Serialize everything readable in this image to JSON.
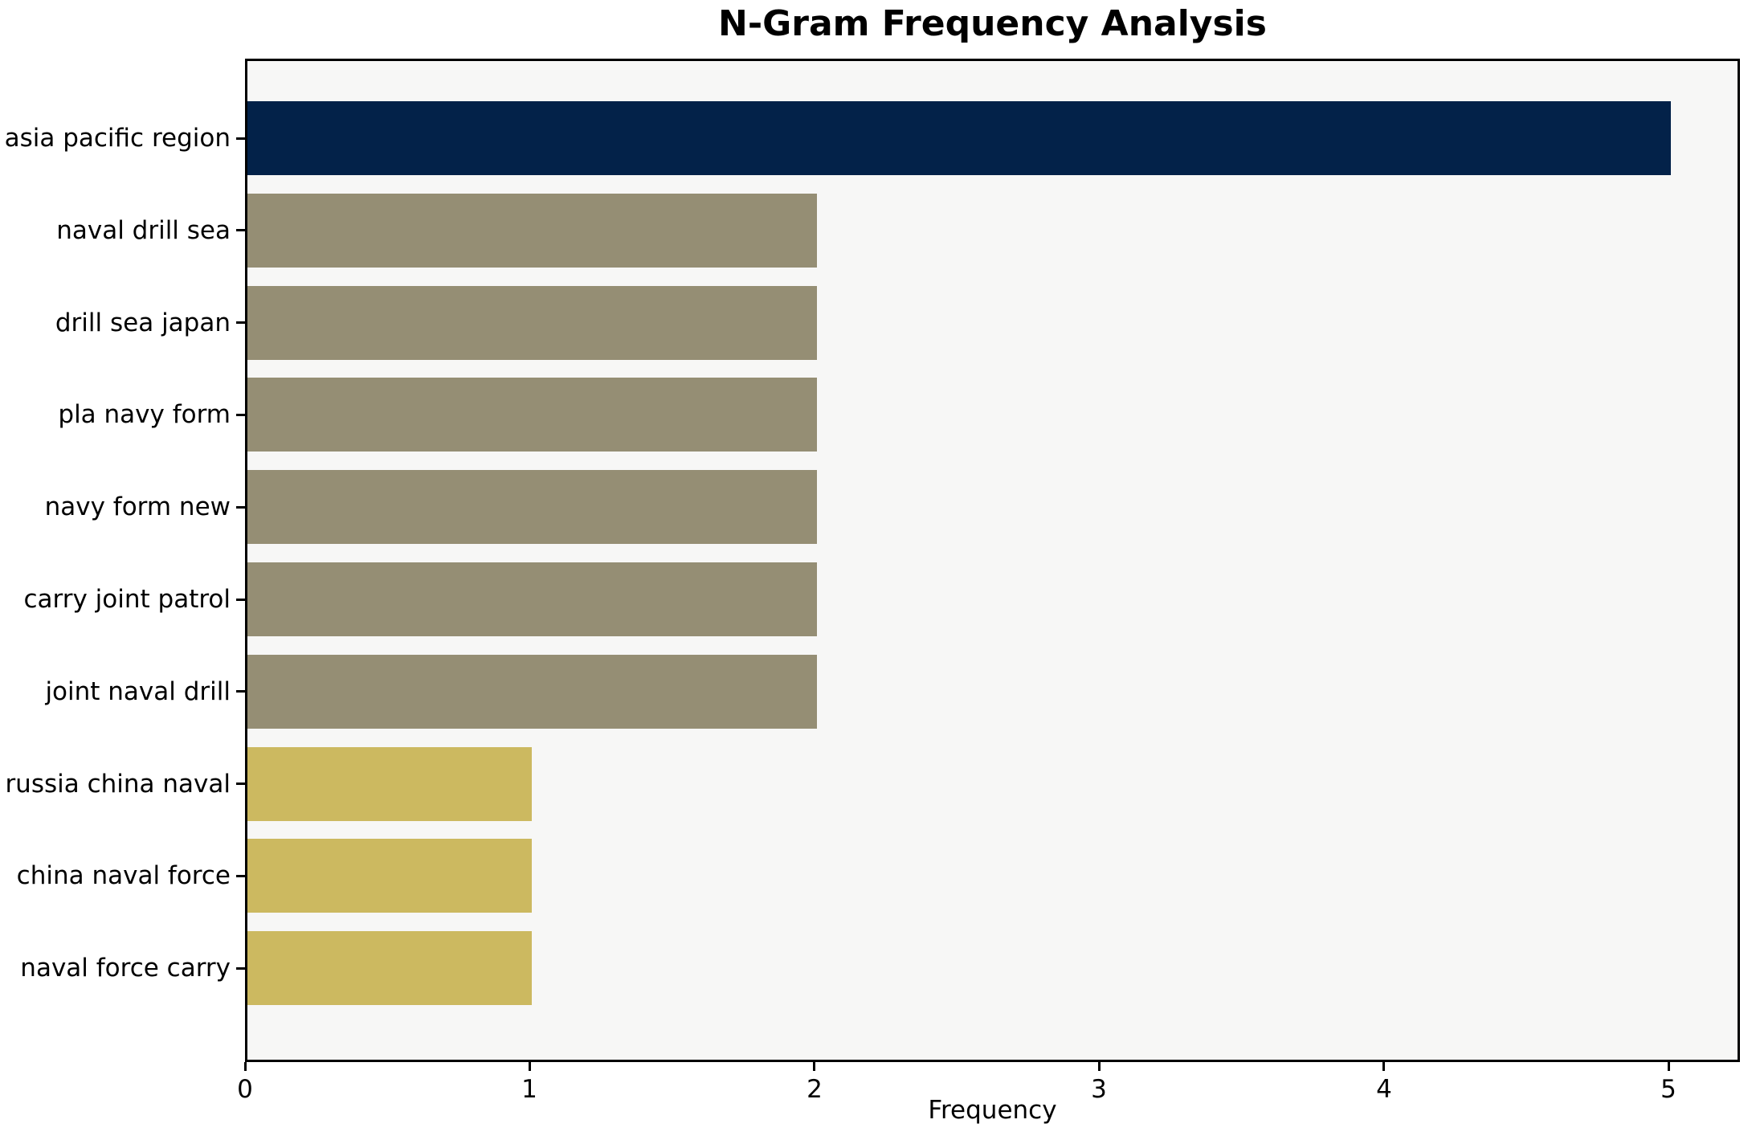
{
  "chart_data": {
    "type": "bar",
    "orientation": "horizontal",
    "title": "N-Gram Frequency Analysis",
    "xlabel": "Frequency",
    "ylabel": "",
    "categories": [
      "asia pacific region",
      "naval drill sea",
      "drill sea japan",
      "pla navy form",
      "navy form new",
      "carry joint patrol",
      "joint naval drill",
      "russia china naval",
      "china naval force",
      "naval force carry"
    ],
    "values": [
      5,
      2,
      2,
      2,
      2,
      2,
      2,
      1,
      1,
      1
    ],
    "bar_colors": [
      "#032249",
      "#958e74",
      "#958e74",
      "#958e74",
      "#958e74",
      "#958e74",
      "#958e74",
      "#ccb960",
      "#ccb960",
      "#ccb960"
    ],
    "xlim": [
      0,
      5.25
    ],
    "xticks": [
      0,
      1,
      2,
      3,
      4,
      5
    ],
    "grid": false,
    "legend_position": "none",
    "plot_background": "#f7f7f6",
    "figure_background": "#ffffff",
    "spine_color": "#000000",
    "text_color": "#000000"
  }
}
